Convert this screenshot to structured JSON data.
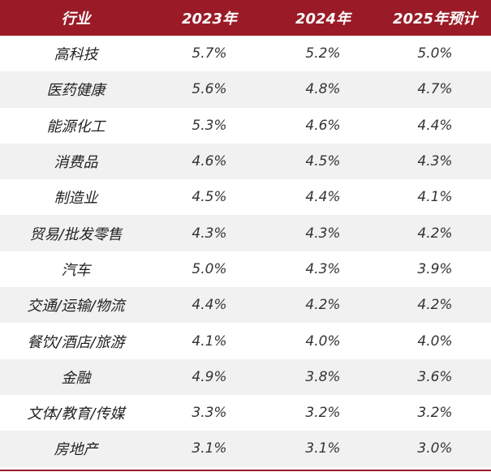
{
  "table": {
    "headers": [
      "行业",
      "2023年",
      "2024年",
      "2025年预计"
    ],
    "rows": [
      [
        "高科技",
        "5.7%",
        "5.2%",
        "5.0%"
      ],
      [
        "医药健康",
        "5.6%",
        "4.8%",
        "4.7%"
      ],
      [
        "能源化工",
        "5.3%",
        "4.6%",
        "4.4%"
      ],
      [
        "消费品",
        "4.6%",
        "4.5%",
        "4.3%"
      ],
      [
        "制造业",
        "4.5%",
        "4.4%",
        "4.1%"
      ],
      [
        "贸易/批发零售",
        "4.3%",
        "4.3%",
        "4.2%"
      ],
      [
        "汽车",
        "5.0%",
        "4.3%",
        "3.9%"
      ],
      [
        "交通/运输/物流",
        "4.4%",
        "4.2%",
        "4.2%"
      ],
      [
        "餐饮/酒店/旅游",
        "4.1%",
        "4.0%",
        "4.0%"
      ],
      [
        "金融",
        "4.9%",
        "3.8%",
        "3.6%"
      ],
      [
        "文体/教育/传媒",
        "3.3%",
        "3.2%",
        "3.2%"
      ],
      [
        "房地产",
        "3.1%",
        "3.1%",
        "3.0%"
      ]
    ]
  },
  "colors": {
    "header_bg": "#9a1b27",
    "header_text": "#ffffff",
    "band_bg": "#f1f1f1",
    "rule": "#9a1b27"
  }
}
